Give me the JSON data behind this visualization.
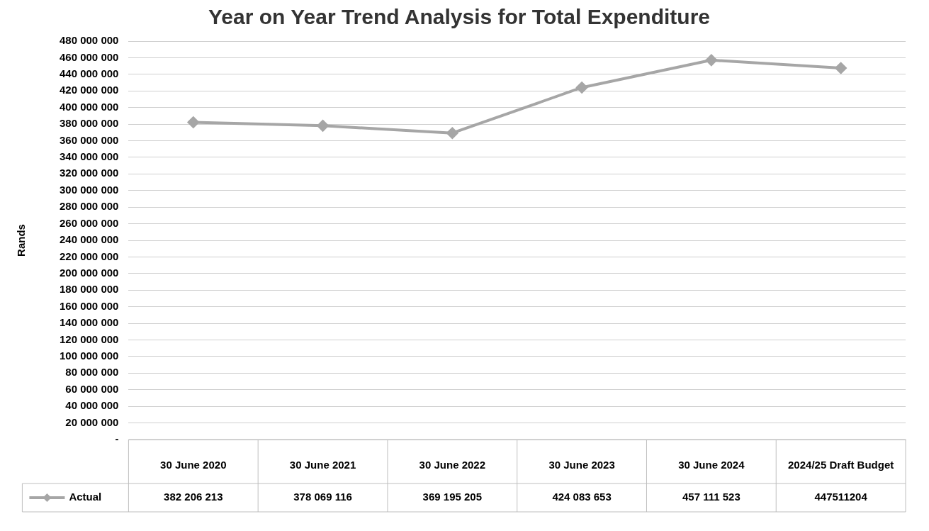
{
  "chart_data": {
    "type": "line",
    "title": "Year on Year Trend Analysis for Total Expenditure",
    "ylabel": "Rands",
    "categories": [
      "30 June 2020",
      "30 June 2021",
      "30 June 2022",
      "30 June 2023",
      "30 June 2024",
      "2024/25 Draft Budget"
    ],
    "series": [
      {
        "name": "Actual",
        "color": "#a6a6a6",
        "values": [
          382206213,
          378069116,
          369195205,
          424083653,
          457111523,
          447511204
        ],
        "value_labels": [
          "382 206 213",
          "378 069 116",
          "369 195 205",
          "424 083 653",
          "457 111 523",
          "447511204"
        ]
      }
    ],
    "ylim": [
      0,
      480000000
    ],
    "yticks": [
      {
        "value": 0,
        "label": "-"
      },
      {
        "value": 20000000,
        "label": "20 000 000"
      },
      {
        "value": 40000000,
        "label": "40 000 000"
      },
      {
        "value": 60000000,
        "label": "60 000 000"
      },
      {
        "value": 80000000,
        "label": "80 000 000"
      },
      {
        "value": 100000000,
        "label": "100 000 000"
      },
      {
        "value": 120000000,
        "label": "120 000 000"
      },
      {
        "value": 140000000,
        "label": "140 000 000"
      },
      {
        "value": 160000000,
        "label": "160 000 000"
      },
      {
        "value": 180000000,
        "label": "180 000 000"
      },
      {
        "value": 200000000,
        "label": "200 000 000"
      },
      {
        "value": 220000000,
        "label": "220 000 000"
      },
      {
        "value": 240000000,
        "label": "240 000 000"
      },
      {
        "value": 260000000,
        "label": "260 000 000"
      },
      {
        "value": 280000000,
        "label": "280 000 000"
      },
      {
        "value": 300000000,
        "label": "300 000 000"
      },
      {
        "value": 320000000,
        "label": "320 000 000"
      },
      {
        "value": 340000000,
        "label": "340 000 000"
      },
      {
        "value": 360000000,
        "label": "360 000 000"
      },
      {
        "value": 380000000,
        "label": "380 000 000"
      },
      {
        "value": 400000000,
        "label": "400 000 000"
      },
      {
        "value": 420000000,
        "label": "420 000 000"
      },
      {
        "value": 440000000,
        "label": "440 000 000"
      },
      {
        "value": 460000000,
        "label": "460 000 000"
      },
      {
        "value": 480000000,
        "label": "480 000 000"
      }
    ],
    "grid": "y",
    "legend": "bottom",
    "marker": "diamond",
    "line_style": "solid"
  }
}
